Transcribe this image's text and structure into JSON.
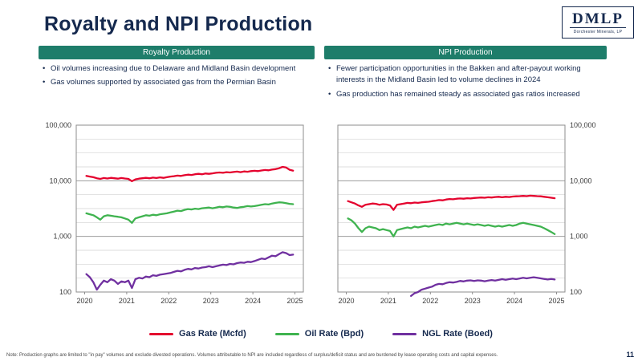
{
  "slide": {
    "title": "Royalty and NPI Production",
    "page_number": "11",
    "footnote": "Note: Production graphs are limited to \"in pay\" volumes and exclude divested operations. Volumes attributable to NPI are included regardless of surplus/deficit status and are burdened by lease operating costs and capital expenses."
  },
  "logo": {
    "name": "DMLP",
    "subtitle": "Dorchester Minerals, LP"
  },
  "sections": {
    "left": {
      "header": "Royalty Production",
      "bullets": [
        "Oil volumes increasing due to Delaware and Midland Basin development",
        "Gas volumes supported by associated gas from the Permian Basin"
      ]
    },
    "right": {
      "header": "NPI Production",
      "bullets": [
        "Fewer participation opportunities in the Bakken and after-payout working interests in the Midland Basin led to volume declines in 2024",
        "Gas production has remained steady as associated gas ratios increased"
      ]
    }
  },
  "legend": [
    {
      "label": "Gas Rate (Mcfd)",
      "color": "#e4032e"
    },
    {
      "label": "Oil Rate (Bpd)",
      "color": "#3fb34f"
    },
    {
      "label": "NGL Rate (Boed)",
      "color": "#7030a0"
    }
  ],
  "colors": {
    "navy": "#15294e",
    "teal_header": "#1e7d6a",
    "gas_red": "#e4032e",
    "oil_green": "#3fb34f",
    "ngl_purple": "#7030a0"
  },
  "chart_data": [
    {
      "type": "line",
      "title": "Royalty Production",
      "y_scale": "log",
      "ylim": [
        100,
        100000
      ],
      "xlim": [
        2019.8,
        2025.2
      ],
      "x_ticks": [
        2020,
        2021,
        2022,
        2023,
        2024,
        2025
      ],
      "y_ticks": [
        100000,
        10000,
        1000,
        100
      ],
      "y_tick_labels": [
        "100,000",
        "10,000",
        "1,000",
        "100"
      ],
      "y_labels": "left",
      "grid": "horizontal",
      "legend_position": "bottom-shared",
      "x_start": 2020.04,
      "x_step": 0.08333,
      "series": [
        {
          "name": "Gas Rate (Mcfd)",
          "color": "#e4032e",
          "values": [
            12200,
            11900,
            11600,
            11100,
            10800,
            11200,
            11000,
            11300,
            11100,
            10900,
            11200,
            11000,
            10800,
            9800,
            10600,
            10900,
            11100,
            11300,
            11100,
            11400,
            11200,
            11500,
            11300,
            11600,
            11900,
            12100,
            12400,
            12200,
            12600,
            12900,
            12700,
            13100,
            13300,
            13100,
            13500,
            13300,
            13600,
            13900,
            14100,
            13900,
            14300,
            14100,
            14400,
            14600,
            14300,
            14700,
            14500,
            14900,
            15100,
            14900,
            15300,
            15600,
            15400,
            15900,
            16200,
            16800,
            17800,
            17300,
            15800,
            15200
          ]
        },
        {
          "name": "Oil Rate (Bpd)",
          "color": "#3fb34f",
          "values": [
            2600,
            2500,
            2400,
            2200,
            2000,
            2300,
            2400,
            2350,
            2300,
            2250,
            2200,
            2100,
            2000,
            1750,
            2100,
            2200,
            2300,
            2400,
            2350,
            2450,
            2400,
            2500,
            2550,
            2600,
            2700,
            2800,
            2900,
            2850,
            3000,
            3100,
            3050,
            3150,
            3100,
            3200,
            3250,
            3300,
            3200,
            3300,
            3400,
            3350,
            3450,
            3400,
            3300,
            3250,
            3350,
            3400,
            3500,
            3450,
            3500,
            3600,
            3700,
            3800,
            3750,
            3900,
            4000,
            4100,
            4050,
            3950,
            3850,
            3800
          ]
        },
        {
          "name": "NGL Rate (Boed)",
          "color": "#7030a0",
          "values": [
            210,
            185,
            150,
            110,
            135,
            160,
            150,
            170,
            160,
            140,
            155,
            150,
            160,
            118,
            170,
            180,
            175,
            190,
            185,
            200,
            195,
            205,
            210,
            215,
            220,
            230,
            240,
            235,
            250,
            260,
            255,
            270,
            265,
            275,
            280,
            290,
            280,
            290,
            300,
            310,
            305,
            320,
            315,
            330,
            340,
            335,
            350,
            345,
            360,
            380,
            400,
            390,
            420,
            450,
            440,
            480,
            520,
            500,
            460,
            470
          ]
        }
      ]
    },
    {
      "type": "line",
      "title": "NPI Production",
      "y_scale": "log",
      "ylim": [
        100,
        100000
      ],
      "xlim": [
        2019.8,
        2025.2
      ],
      "x_ticks": [
        2020,
        2021,
        2022,
        2023,
        2024,
        2025
      ],
      "y_ticks": [
        100000,
        10000,
        1000,
        100
      ],
      "y_tick_labels": [
        "100,000",
        "10,000",
        "1,000",
        "100"
      ],
      "y_labels": "right",
      "grid": "horizontal",
      "legend_position": "bottom-shared",
      "x_start": 2020.04,
      "x_step": 0.08333,
      "series": [
        {
          "name": "Gas Rate (Mcfd)",
          "color": "#e4032e",
          "values": [
            4300,
            4100,
            3900,
            3600,
            3400,
            3700,
            3800,
            3900,
            3850,
            3700,
            3800,
            3750,
            3600,
            3000,
            3700,
            3800,
            3900,
            4000,
            3950,
            4050,
            4000,
            4100,
            4150,
            4200,
            4300,
            4400,
            4500,
            4450,
            4600,
            4700,
            4650,
            4750,
            4800,
            4750,
            4850,
            4800,
            4900,
            4950,
            5000,
            4950,
            5050,
            5000,
            5100,
            5150,
            5050,
            5150,
            5100,
            5200,
            5250,
            5300,
            5350,
            5300,
            5400,
            5350,
            5300,
            5250,
            5150,
            5050,
            4950,
            4850
          ]
        },
        {
          "name": "Oil Rate (Bpd)",
          "color": "#3fb34f",
          "values": [
            2100,
            1950,
            1700,
            1400,
            1200,
            1400,
            1500,
            1450,
            1400,
            1300,
            1350,
            1300,
            1250,
            1000,
            1300,
            1350,
            1400,
            1450,
            1400,
            1500,
            1450,
            1500,
            1550,
            1500,
            1550,
            1600,
            1650,
            1600,
            1700,
            1650,
            1700,
            1750,
            1700,
            1650,
            1700,
            1650,
            1600,
            1650,
            1600,
            1550,
            1600,
            1550,
            1500,
            1550,
            1500,
            1550,
            1600,
            1550,
            1600,
            1700,
            1750,
            1700,
            1650,
            1600,
            1550,
            1500,
            1400,
            1300,
            1200,
            1100
          ]
        },
        {
          "name": "NGL Rate (Boed)",
          "color": "#7030a0",
          "values": [
            null,
            null,
            null,
            null,
            null,
            null,
            null,
            null,
            null,
            null,
            null,
            null,
            null,
            null,
            null,
            null,
            null,
            null,
            85,
            95,
            100,
            110,
            115,
            120,
            125,
            135,
            140,
            138,
            145,
            150,
            148,
            152,
            158,
            155,
            160,
            162,
            158,
            162,
            160,
            156,
            160,
            164,
            160,
            165,
            170,
            166,
            170,
            174,
            170,
            175,
            180,
            176,
            180,
            184,
            180,
            176,
            172,
            168,
            172,
            168
          ]
        }
      ]
    }
  ]
}
